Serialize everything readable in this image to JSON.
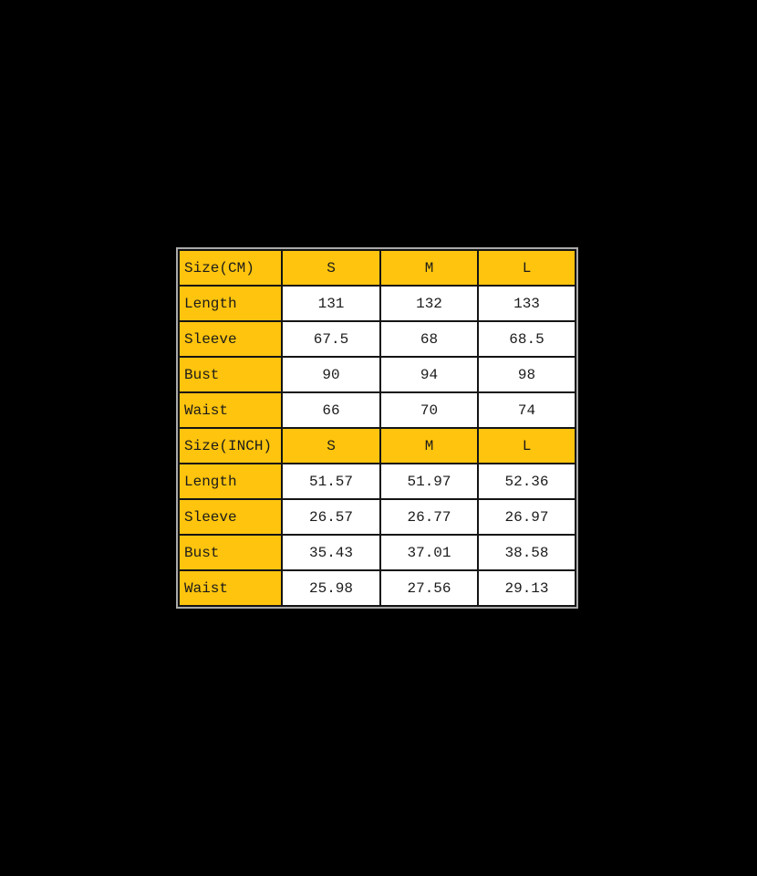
{
  "colors": {
    "page_background": "#000000",
    "header_fill": "#FFC40D",
    "data_fill": "#FFFFFF",
    "grid": "#141414",
    "text": "#1B1B1B",
    "outer_outline": "#A9A9A9"
  },
  "chart_data": {
    "type": "table",
    "sizes": [
      "S",
      "M",
      "L"
    ],
    "units": [
      "CM",
      "INCH"
    ],
    "measurements": [
      "Length",
      "Sleeve",
      "Bust",
      "Waist"
    ],
    "rows": [
      {
        "kind": "section-header",
        "cells": [
          "Size(CM)",
          "S",
          "M",
          "L"
        ]
      },
      {
        "kind": "data",
        "cells": [
          "Length",
          "131",
          "132",
          "133"
        ]
      },
      {
        "kind": "data",
        "cells": [
          "Sleeve",
          "67.5",
          "68",
          "68.5"
        ]
      },
      {
        "kind": "data",
        "cells": [
          "Bust",
          "90",
          "94",
          "98"
        ]
      },
      {
        "kind": "data",
        "cells": [
          "Waist",
          "66",
          "70",
          "74"
        ]
      },
      {
        "kind": "section-header",
        "cells": [
          "Size(INCH)",
          "S",
          "M",
          "L"
        ]
      },
      {
        "kind": "data",
        "cells": [
          "Length",
          "51.57",
          "51.97",
          "52.36"
        ]
      },
      {
        "kind": "data",
        "cells": [
          "Sleeve",
          "26.57",
          "26.77",
          "26.97"
        ]
      },
      {
        "kind": "data",
        "cells": [
          "Bust",
          "35.43",
          "37.01",
          "38.58"
        ]
      },
      {
        "kind": "data",
        "cells": [
          "Waist",
          "25.98",
          "27.56",
          "29.13"
        ]
      }
    ]
  }
}
